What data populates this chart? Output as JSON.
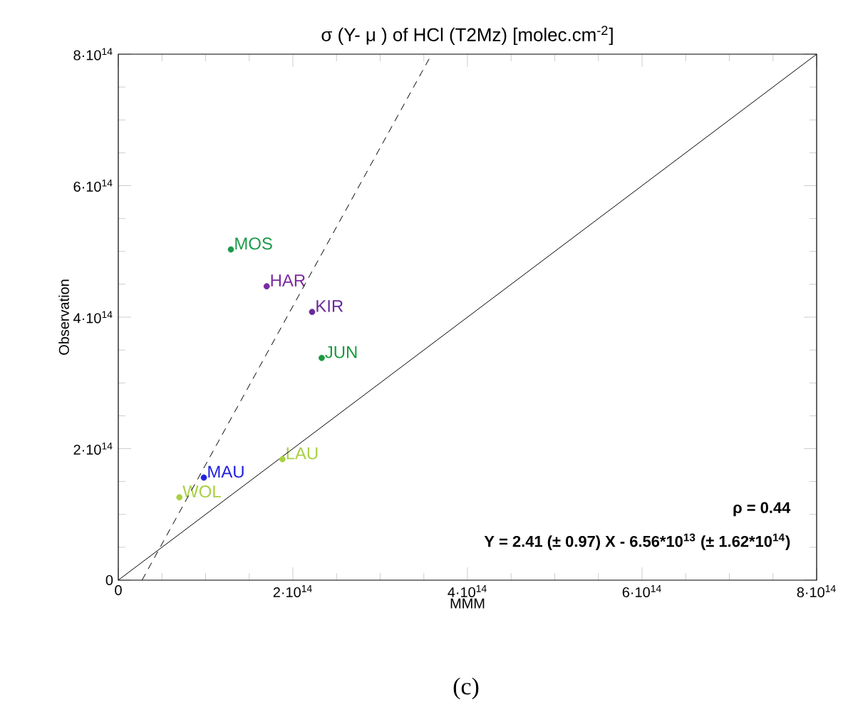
{
  "chart_data": {
    "type": "scatter",
    "title": "σ (Y- μ ) of HCl (T2Mz) [molec.cm$^{-2}$]",
    "xlabel": "MMM",
    "ylabel": "Observation",
    "xlim": [
      0,
      800000000000000.0
    ],
    "ylim": [
      0,
      800000000000000.0
    ],
    "xticks": [
      0,
      {
        "value": 200000000000000.0,
        "label": "2·10$^{14}$"
      },
      {
        "value": 400000000000000.0,
        "label": "4·10$^{14}$"
      },
      {
        "value": 600000000000000.0,
        "label": "6·10$^{14}$"
      },
      {
        "value": 800000000000000.0,
        "label": "8·10$^{14}$"
      }
    ],
    "yticks": [
      0,
      {
        "value": 200000000000000.0,
        "label": "2·10$^{14}$"
      },
      {
        "value": 400000000000000.0,
        "label": "4·10$^{14}$"
      },
      {
        "value": 600000000000000.0,
        "label": "6·10$^{14}$"
      },
      {
        "value": 800000000000000.0,
        "label": "8·10$^{14}$"
      }
    ],
    "series": [
      {
        "name": "MOS",
        "color": "#1a9a4a",
        "marker": "circle",
        "x": [
          129000000000000.0
        ],
        "values": [
          503000000000000.0
        ]
      },
      {
        "name": "HAR",
        "color": "#7a2aa0",
        "marker": "circle",
        "x": [
          170000000000000.0
        ],
        "values": [
          447000000000000.0
        ]
      },
      {
        "name": "KIR",
        "color": "#6a2a9a",
        "marker": "circle",
        "x": [
          222000000000000.0
        ],
        "values": [
          408000000000000.0
        ]
      },
      {
        "name": "JUN",
        "color": "#1a9a40",
        "marker": "circle",
        "x": [
          233000000000000.0
        ],
        "values": [
          338000000000000.0
        ]
      },
      {
        "name": "LAU",
        "color": "#a8d040",
        "marker": "circle",
        "x": [
          188000000000000.0
        ],
        "values": [
          184000000000000.0
        ]
      },
      {
        "name": "MAU",
        "color": "#2020e0",
        "marker": "circle",
        "x": [
          98000000000000.0
        ],
        "values": [
          156000000000000.0
        ]
      },
      {
        "name": "WOL",
        "color": "#a8d040",
        "marker": "circle",
        "x": [
          70000000000000.0
        ],
        "values": [
          126000000000000.0
        ]
      },
      {
        "type": "line",
        "color": "#000000",
        "line_style": "solid",
        "marker": "none",
        "x": [
          0,
          800000000000000.0
        ],
        "values": [
          0,
          800000000000000.0
        ]
      },
      {
        "type": "line",
        "color": "#000000",
        "line_style": "dashed",
        "marker": "none",
        "x": [
          27200000000000.0,
          359000000000000.0
        ],
        "values": [
          0,
          800000000000000.0
        ]
      }
    ],
    "annotations": [
      "ρ = 0.44",
      "Y = 2.41 (± 0.97) X - 6.56*10$^{13}$ (± 1.62*10$^{14}$)",
      "(c)"
    ]
  }
}
